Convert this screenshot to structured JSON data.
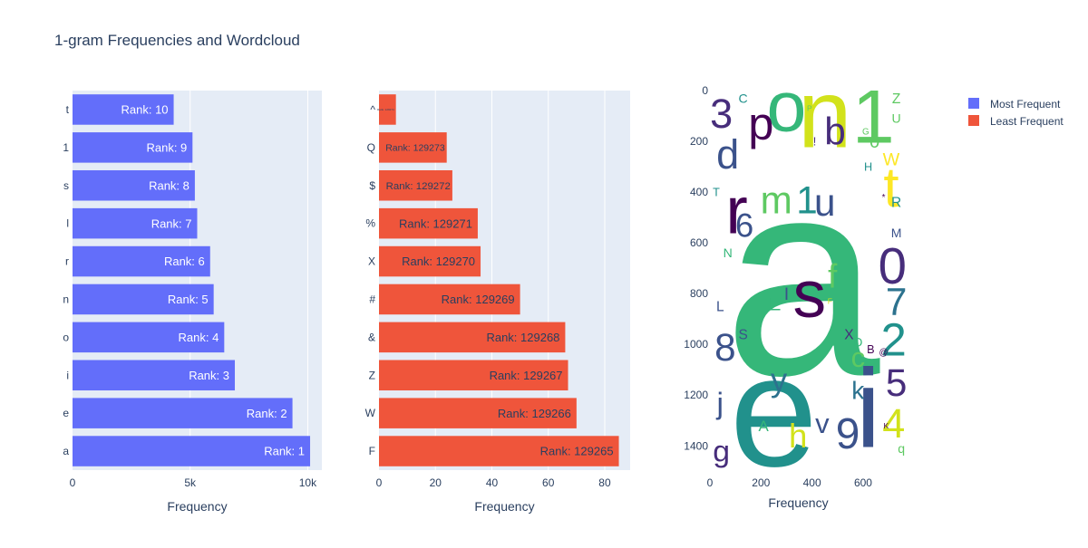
{
  "title": "1-gram Frequencies and Wordcloud",
  "colors": {
    "most": "#636efa",
    "least": "#ef553b",
    "plot_bg": "#e5ecf6",
    "grid": "#ffffff",
    "text": "#2a3f5f"
  },
  "legend": {
    "items": [
      {
        "label": "Most Frequent",
        "color": "#636efa"
      },
      {
        "label": "Least Frequent",
        "color": "#ef553b"
      }
    ]
  },
  "chart_data": [
    {
      "type": "bar",
      "orientation": "horizontal",
      "series_name": "Most Frequent",
      "xlabel": "Frequency",
      "xlim": [
        0,
        10600
      ],
      "xticks": [
        {
          "value": 0,
          "label": "0"
        },
        {
          "value": 5000,
          "label": "5k"
        },
        {
          "value": 10000,
          "label": "10k"
        }
      ],
      "categories": [
        "a",
        "e",
        "i",
        "o",
        "n",
        "r",
        "l",
        "s",
        "1",
        "t"
      ],
      "values": [
        10100,
        9350,
        6900,
        6450,
        6000,
        5850,
        5300,
        5200,
        5100,
        4300
      ],
      "labels": [
        "Rank: 1",
        "Rank: 2",
        "Rank: 3",
        "Rank: 4",
        "Rank: 5",
        "Rank: 6",
        "Rank: 7",
        "Rank: 8",
        "Rank: 9",
        "Rank: 10"
      ]
    },
    {
      "type": "bar",
      "orientation": "horizontal",
      "series_name": "Least Frequent",
      "xlabel": "Frequency",
      "xlim": [
        0,
        89
      ],
      "xticks": [
        {
          "value": 0,
          "label": "0"
        },
        {
          "value": 20,
          "label": "20"
        },
        {
          "value": 40,
          "label": "40"
        },
        {
          "value": 60,
          "label": "60"
        },
        {
          "value": 80,
          "label": "80"
        }
      ],
      "categories": [
        "F",
        "W",
        "Z",
        "&",
        "#",
        "X",
        "%",
        "$",
        "Q",
        "^"
      ],
      "values": [
        85,
        70,
        67,
        66,
        50,
        36,
        35,
        26,
        24,
        6
      ],
      "labels": [
        "Rank: 129265",
        "Rank: 129266",
        "Rank: 129267",
        "Rank: 129268",
        "Rank: 129269",
        "Rank: 129270",
        "Rank: 129271",
        "Rank: 129272",
        "Rank: 129273",
        "Rank: 129274"
      ]
    },
    {
      "type": "wordcloud",
      "xlabel": "Frequency",
      "xlim": [
        0,
        799
      ],
      "ylim": [
        1499,
        0
      ],
      "xticks": [
        {
          "value": 0,
          "label": "0"
        },
        {
          "value": 200,
          "label": "200"
        },
        {
          "value": 400,
          "label": "400"
        },
        {
          "value": 600,
          "label": "600"
        }
      ],
      "yticks": [
        {
          "value": 0,
          "label": "0"
        },
        {
          "value": 200,
          "label": "200"
        },
        {
          "value": 400,
          "label": "400"
        },
        {
          "value": 600,
          "label": "600"
        },
        {
          "value": 800,
          "label": "800"
        },
        {
          "value": 1000,
          "label": "1000"
        },
        {
          "value": 1200,
          "label": "1200"
        },
        {
          "value": 1400,
          "label": "1400"
        }
      ],
      "words": [
        {
          "text": "a",
          "x": 360,
          "y": 730,
          "size": 1100,
          "color": "#35b779"
        },
        {
          "text": "e",
          "x": 250,
          "y": 1260,
          "size": 620,
          "color": "#21918c"
        },
        {
          "text": "n",
          "x": 450,
          "y": 90,
          "size": 380,
          "color": "#d2e21b"
        },
        {
          "text": "i",
          "x": 620,
          "y": 1250,
          "size": 440,
          "color": "#3b528b"
        },
        {
          "text": "1",
          "x": 640,
          "y": 100,
          "size": 300,
          "color": "#5ec962"
        },
        {
          "text": "o",
          "x": 300,
          "y": 60,
          "size": 280,
          "color": "#35b779"
        },
        {
          "text": "r",
          "x": 105,
          "y": 470,
          "size": 260,
          "color": "#440154"
        },
        {
          "text": "s",
          "x": 390,
          "y": 800,
          "size": 260,
          "color": "#440154"
        },
        {
          "text": "t",
          "x": 710,
          "y": 380,
          "size": 220,
          "color": "#fde725"
        },
        {
          "text": "0",
          "x": 715,
          "y": 690,
          "size": 200,
          "color": "#472d7b"
        },
        {
          "text": "p",
          "x": 200,
          "y": 130,
          "size": 180,
          "color": "#440154"
        },
        {
          "text": "m",
          "x": 260,
          "y": 430,
          "size": 150,
          "color": "#5ec962"
        },
        {
          "text": "1",
          "x": 380,
          "y": 430,
          "size": 150,
          "color": "#21918c"
        },
        {
          "text": "u",
          "x": 450,
          "y": 440,
          "size": 150,
          "color": "#3b528b"
        },
        {
          "text": "b",
          "x": 490,
          "y": 160,
          "size": 150,
          "color": "#472d7b"
        },
        {
          "text": "3",
          "x": 45,
          "y": 90,
          "size": 160,
          "color": "#472d7b"
        },
        {
          "text": "d",
          "x": 70,
          "y": 250,
          "size": 160,
          "color": "#3b528b"
        },
        {
          "text": "2",
          "x": 720,
          "y": 980,
          "size": 180,
          "color": "#21918c"
        },
        {
          "text": "5",
          "x": 730,
          "y": 1150,
          "size": 150,
          "color": "#472d7b"
        },
        {
          "text": "7",
          "x": 730,
          "y": 830,
          "size": 150,
          "color": "#2c728e"
        },
        {
          "text": "8",
          "x": 60,
          "y": 1010,
          "size": 150,
          "color": "#3b528b"
        },
        {
          "text": "9",
          "x": 540,
          "y": 1350,
          "size": 170,
          "color": "#3b528b"
        },
        {
          "text": "4",
          "x": 720,
          "y": 1310,
          "size": 160,
          "color": "#d2e21b"
        },
        {
          "text": "6",
          "x": 135,
          "y": 530,
          "size": 130,
          "color": "#3b528b"
        },
        {
          "text": "f",
          "x": 480,
          "y": 730,
          "size": 130,
          "color": "#5ec962"
        },
        {
          "text": "y",
          "x": 270,
          "y": 1140,
          "size": 130,
          "color": "#2c728e"
        },
        {
          "text": "h",
          "x": 345,
          "y": 1360,
          "size": 130,
          "color": "#d2e21b"
        },
        {
          "text": "v",
          "x": 440,
          "y": 1310,
          "size": 110,
          "color": "#3b528b"
        },
        {
          "text": "c",
          "x": 580,
          "y": 1050,
          "size": 110,
          "color": "#5ec962"
        },
        {
          "text": "j",
          "x": 40,
          "y": 1230,
          "size": 120,
          "color": "#3b528b"
        },
        {
          "text": "g",
          "x": 45,
          "y": 1420,
          "size": 120,
          "color": "#472d7b"
        },
        {
          "text": "k",
          "x": 580,
          "y": 1180,
          "size": 100,
          "color": "#2c728e"
        },
        {
          "text": "E",
          "x": 255,
          "y": 840,
          "size": 70,
          "color": "#35b779"
        },
        {
          "text": "I",
          "x": 300,
          "y": 800,
          "size": 70,
          "color": "#3b528b"
        },
        {
          "text": "W",
          "x": 710,
          "y": 270,
          "size": 70,
          "color": "#fde725"
        },
        {
          "text": "0",
          "x": 645,
          "y": 200,
          "size": 70,
          "color": "#5ec962"
        },
        {
          "text": "A",
          "x": 210,
          "y": 1320,
          "size": 60,
          "color": "#35b779"
        },
        {
          "text": "L",
          "x": 40,
          "y": 850,
          "size": 55,
          "color": "#3b528b"
        },
        {
          "text": "R",
          "x": 730,
          "y": 440,
          "size": 55,
          "color": "#21918c"
        },
        {
          "text": "M",
          "x": 730,
          "y": 560,
          "size": 50,
          "color": "#3b528b"
        },
        {
          "text": "N",
          "x": 70,
          "y": 640,
          "size": 50,
          "color": "#35b779"
        },
        {
          "text": "T",
          "x": 25,
          "y": 400,
          "size": 45,
          "color": "#21918c"
        },
        {
          "text": "H",
          "x": 620,
          "y": 300,
          "size": 45,
          "color": "#21918c"
        },
        {
          "text": "D",
          "x": 580,
          "y": 990,
          "size": 50,
          "color": "#35b779"
        },
        {
          "text": "S",
          "x": 130,
          "y": 960,
          "size": 55,
          "color": "#3b528b"
        },
        {
          "text": "B",
          "x": 630,
          "y": 1020,
          "size": 45,
          "color": "#440154"
        },
        {
          "text": "X",
          "x": 545,
          "y": 960,
          "size": 55,
          "color": "#472d7b"
        },
        {
          "text": "Z",
          "x": 730,
          "y": 30,
          "size": 55,
          "color": "#5ec962"
        },
        {
          "text": "U",
          "x": 730,
          "y": 110,
          "size": 50,
          "color": "#5ec962"
        },
        {
          "text": "C",
          "x": 130,
          "y": 30,
          "size": 50,
          "color": "#21918c"
        },
        {
          "text": "q",
          "x": 750,
          "y": 1410,
          "size": 50,
          "color": "#5ec962"
        },
        {
          "text": "!",
          "x": 410,
          "y": 200,
          "size": 45,
          "color": "#472d7b"
        },
        {
          "text": "@",
          "x": 680,
          "y": 1030,
          "size": 35,
          "color": "#440154"
        },
        {
          "text": "*",
          "x": 680,
          "y": 420,
          "size": 35,
          "color": "#440154"
        },
        {
          "text": "K",
          "x": 690,
          "y": 1320,
          "size": 30,
          "color": "#440154"
        },
        {
          "text": "G",
          "x": 610,
          "y": 160,
          "size": 35,
          "color": "#5ec962"
        },
        {
          "text": "P",
          "x": 390,
          "y": 70,
          "size": 30,
          "color": "#5ec962"
        },
        {
          "text": "F",
          "x": 470,
          "y": 830,
          "size": 30,
          "color": "#d2e21b"
        }
      ]
    }
  ]
}
